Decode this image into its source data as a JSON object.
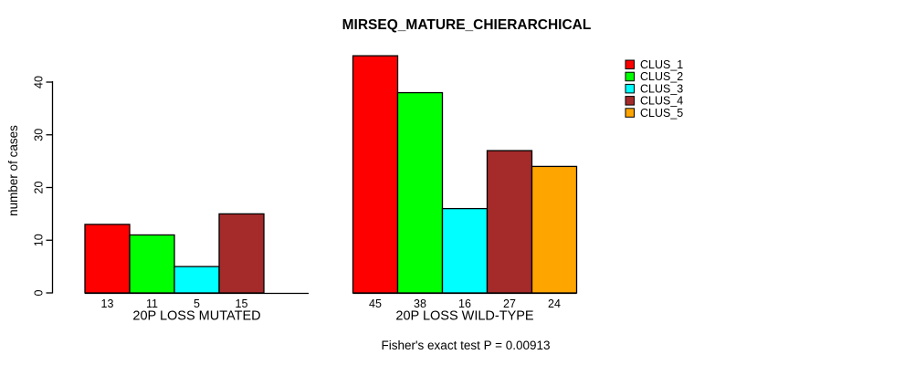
{
  "chart_data": {
    "type": "bar",
    "title": "MIRSEQ_MATURE_CHIERARCHICAL",
    "ylabel": "number of cases",
    "xlabel": "",
    "ylim": [
      0,
      45
    ],
    "yticks": [
      0,
      10,
      20,
      30,
      40
    ],
    "grid": false,
    "legend_position": "top-right",
    "series_names": [
      "CLUS_1",
      "CLUS_2",
      "CLUS_3",
      "CLUS_4",
      "CLUS_5"
    ],
    "series_colors": [
      "#FF0000",
      "#00FF00",
      "#00FFFF",
      "#A52A2A",
      "#FFA500"
    ],
    "groups": [
      {
        "label": "20P LOSS MUTATED",
        "values": [
          13,
          11,
          5,
          15,
          0
        ],
        "bar_labels": [
          "13",
          "11",
          "5",
          "15",
          ""
        ]
      },
      {
        "label": "20P LOSS WILD-TYPE",
        "values": [
          45,
          38,
          16,
          27,
          24
        ],
        "bar_labels": [
          "45",
          "38",
          "16",
          "27",
          "24"
        ]
      }
    ],
    "annotation": "Fisher's exact test P = 0.00913"
  },
  "legend": {
    "items": [
      {
        "label": "CLUS_1",
        "color": "#FF0000"
      },
      {
        "label": "CLUS_2",
        "color": "#00FF00"
      },
      {
        "label": "CLUS_3",
        "color": "#00FFFF"
      },
      {
        "label": "CLUS_4",
        "color": "#A52A2A"
      },
      {
        "label": "CLUS_5",
        "color": "#FFA500"
      }
    ]
  }
}
